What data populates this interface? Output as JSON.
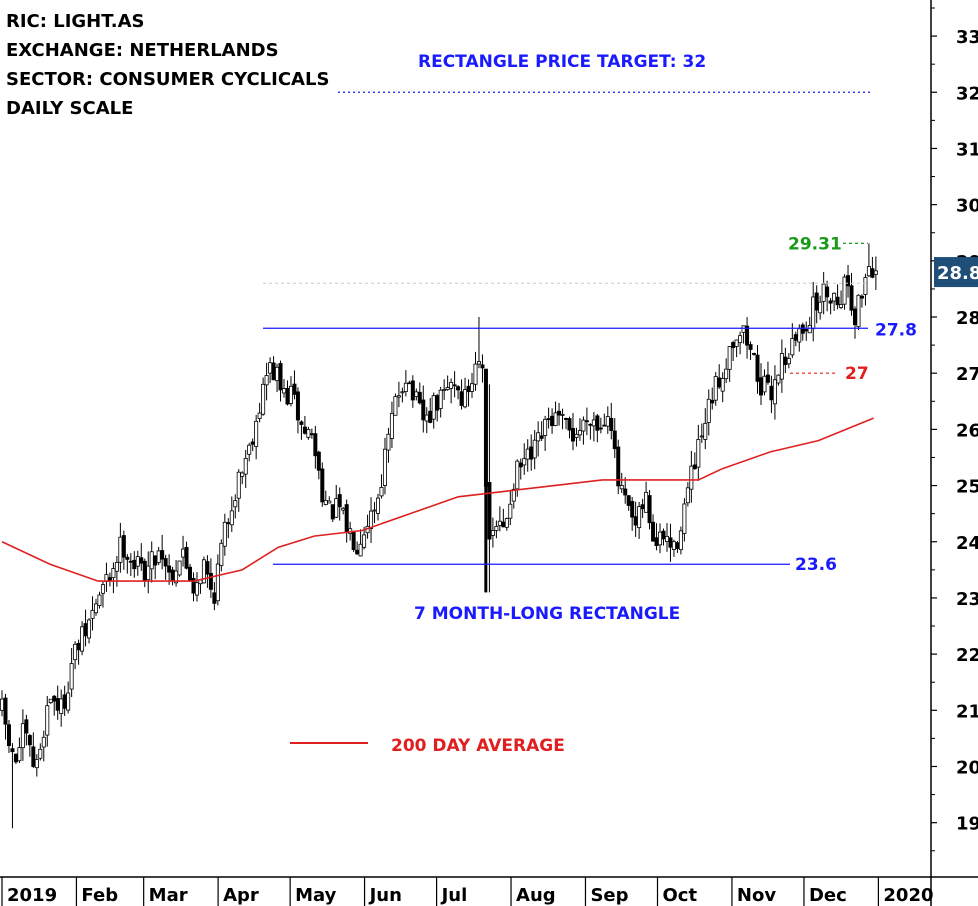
{
  "info": {
    "ric": "RIC: LIGHT.AS",
    "exchange": "EXCHANGE: NETHERLANDS",
    "sector": "SECTOR: CONSUMER CYCLICALS",
    "scale": "DAILY SCALE"
  },
  "annotations": {
    "target": "RECTANGLE PRICE TARGET: 32",
    "pattern": "7 MONTH-LONG RECTANGLE",
    "ma_legend": "200 DAY AVERAGE",
    "resistance": "27.8",
    "support": "23.6",
    "stop": "27",
    "high": "29.31",
    "last_price": "28.8"
  },
  "colors": {
    "candle": "#000000",
    "ma": "#e02020",
    "pattern_lines": "#1a1aff",
    "target": "#1a1aff",
    "stop": "#e02020",
    "high": "#1a9a1a",
    "last_badge": "#1f4e79"
  },
  "chart_data": {
    "type": "candlestick",
    "y_ticks": [
      19,
      20,
      21,
      22,
      23,
      24,
      25,
      26,
      27,
      28,
      29,
      30,
      31,
      32,
      33
    ],
    "y_tick_labels": [
      "19",
      "20",
      "21",
      "22",
      "23",
      "24",
      "25",
      "26",
      "27",
      "28",
      "29",
      "30",
      "31",
      "32",
      "33"
    ],
    "ylim": [
      18.3,
      33.5
    ],
    "x_labels": [
      "2019",
      "Feb",
      "Mar",
      "Apr",
      "May",
      "Jun",
      "Jul",
      "Aug",
      "Sep",
      "Oct",
      "Nov",
      "Dec",
      "2020"
    ],
    "levels": {
      "resistance": 27.8,
      "support": 23.6,
      "target": 32,
      "stop": 27,
      "high": 29.31,
      "last": 28.8,
      "prior_high": 28.6
    },
    "price_path": [
      [
        0,
        21.0
      ],
      [
        5,
        20.0
      ],
      [
        9,
        20.6
      ],
      [
        14,
        19.9
      ],
      [
        20,
        21.3
      ],
      [
        25,
        21.0
      ],
      [
        30,
        22.0
      ],
      [
        35,
        22.4
      ],
      [
        40,
        23.0
      ],
      [
        45,
        23.4
      ],
      [
        50,
        24.0
      ],
      [
        55,
        23.6
      ],
      [
        60,
        23.5
      ],
      [
        66,
        23.9
      ],
      [
        70,
        23.4
      ],
      [
        75,
        23.8
      ],
      [
        80,
        23.2
      ],
      [
        84,
        23.6
      ],
      [
        88,
        23.0
      ],
      [
        91,
        23.8
      ],
      [
        95,
        24.6
      ],
      [
        99,
        25.2
      ],
      [
        103,
        25.7
      ],
      [
        107,
        26.4
      ],
      [
        111,
        27.1
      ],
      [
        114,
        27.0
      ],
      [
        117,
        26.6
      ],
      [
        121,
        26.6
      ],
      [
        125,
        26.0
      ],
      [
        129,
        25.9
      ],
      [
        133,
        25.0
      ],
      [
        136,
        24.5
      ],
      [
        140,
        24.6
      ],
      [
        144,
        24.2
      ],
      [
        148,
        24.0
      ],
      [
        152,
        24.4
      ],
      [
        156,
        24.7
      ],
      [
        160,
        25.6
      ],
      [
        164,
        26.5
      ],
      [
        168,
        27.0
      ],
      [
        172,
        26.5
      ],
      [
        176,
        26.1
      ],
      [
        180,
        26.4
      ],
      [
        184,
        26.6
      ],
      [
        188,
        26.9
      ],
      [
        192,
        26.5
      ],
      [
        196,
        26.9
      ],
      [
        199,
        27.5
      ],
      [
        201,
        27.0
      ],
      [
        202,
        23.6
      ],
      [
        205,
        24.3
      ],
      [
        209,
        24.2
      ],
      [
        213,
        25.1
      ],
      [
        217,
        25.4
      ],
      [
        221,
        25.5
      ],
      [
        225,
        25.9
      ],
      [
        229,
        26.2
      ],
      [
        233,
        26.1
      ],
      [
        237,
        25.9
      ],
      [
        241,
        26.0
      ],
      [
        245,
        26.3
      ],
      [
        249,
        26.0
      ],
      [
        253,
        26.5
      ],
      [
        256,
        25.1
      ],
      [
        260,
        24.6
      ],
      [
        264,
        24.2
      ],
      [
        268,
        24.8
      ],
      [
        272,
        23.9
      ],
      [
        276,
        24.1
      ],
      [
        280,
        23.8
      ],
      [
        284,
        24.6
      ],
      [
        288,
        25.3
      ],
      [
        292,
        25.9
      ],
      [
        296,
        26.6
      ],
      [
        300,
        27.0
      ],
      [
        304,
        27.6
      ],
      [
        308,
        27.8
      ],
      [
        312,
        27.4
      ],
      [
        316,
        26.8
      ],
      [
        320,
        26.6
      ],
      [
        324,
        27.2
      ],
      [
        328,
        27.4
      ],
      [
        332,
        27.7
      ],
      [
        336,
        28.0
      ],
      [
        340,
        28.3
      ],
      [
        344,
        28.5
      ],
      [
        348,
        28.3
      ],
      [
        352,
        28.7
      ],
      [
        355,
        28.0
      ],
      [
        358,
        28.4
      ],
      [
        361,
        29.0
      ],
      [
        363,
        28.8
      ]
    ],
    "ma_200": [
      [
        0,
        24.0
      ],
      [
        20,
        23.6
      ],
      [
        40,
        23.3
      ],
      [
        60,
        23.3
      ],
      [
        80,
        23.3
      ],
      [
        100,
        23.5
      ],
      [
        115,
        23.9
      ],
      [
        130,
        24.1
      ],
      [
        150,
        24.2
      ],
      [
        170,
        24.5
      ],
      [
        190,
        24.8
      ],
      [
        210,
        24.9
      ],
      [
        230,
        25.0
      ],
      [
        250,
        25.1
      ],
      [
        270,
        25.1
      ],
      [
        290,
        25.1
      ],
      [
        300,
        25.3
      ],
      [
        320,
        25.6
      ],
      [
        340,
        25.8
      ],
      [
        363,
        26.2
      ]
    ]
  }
}
